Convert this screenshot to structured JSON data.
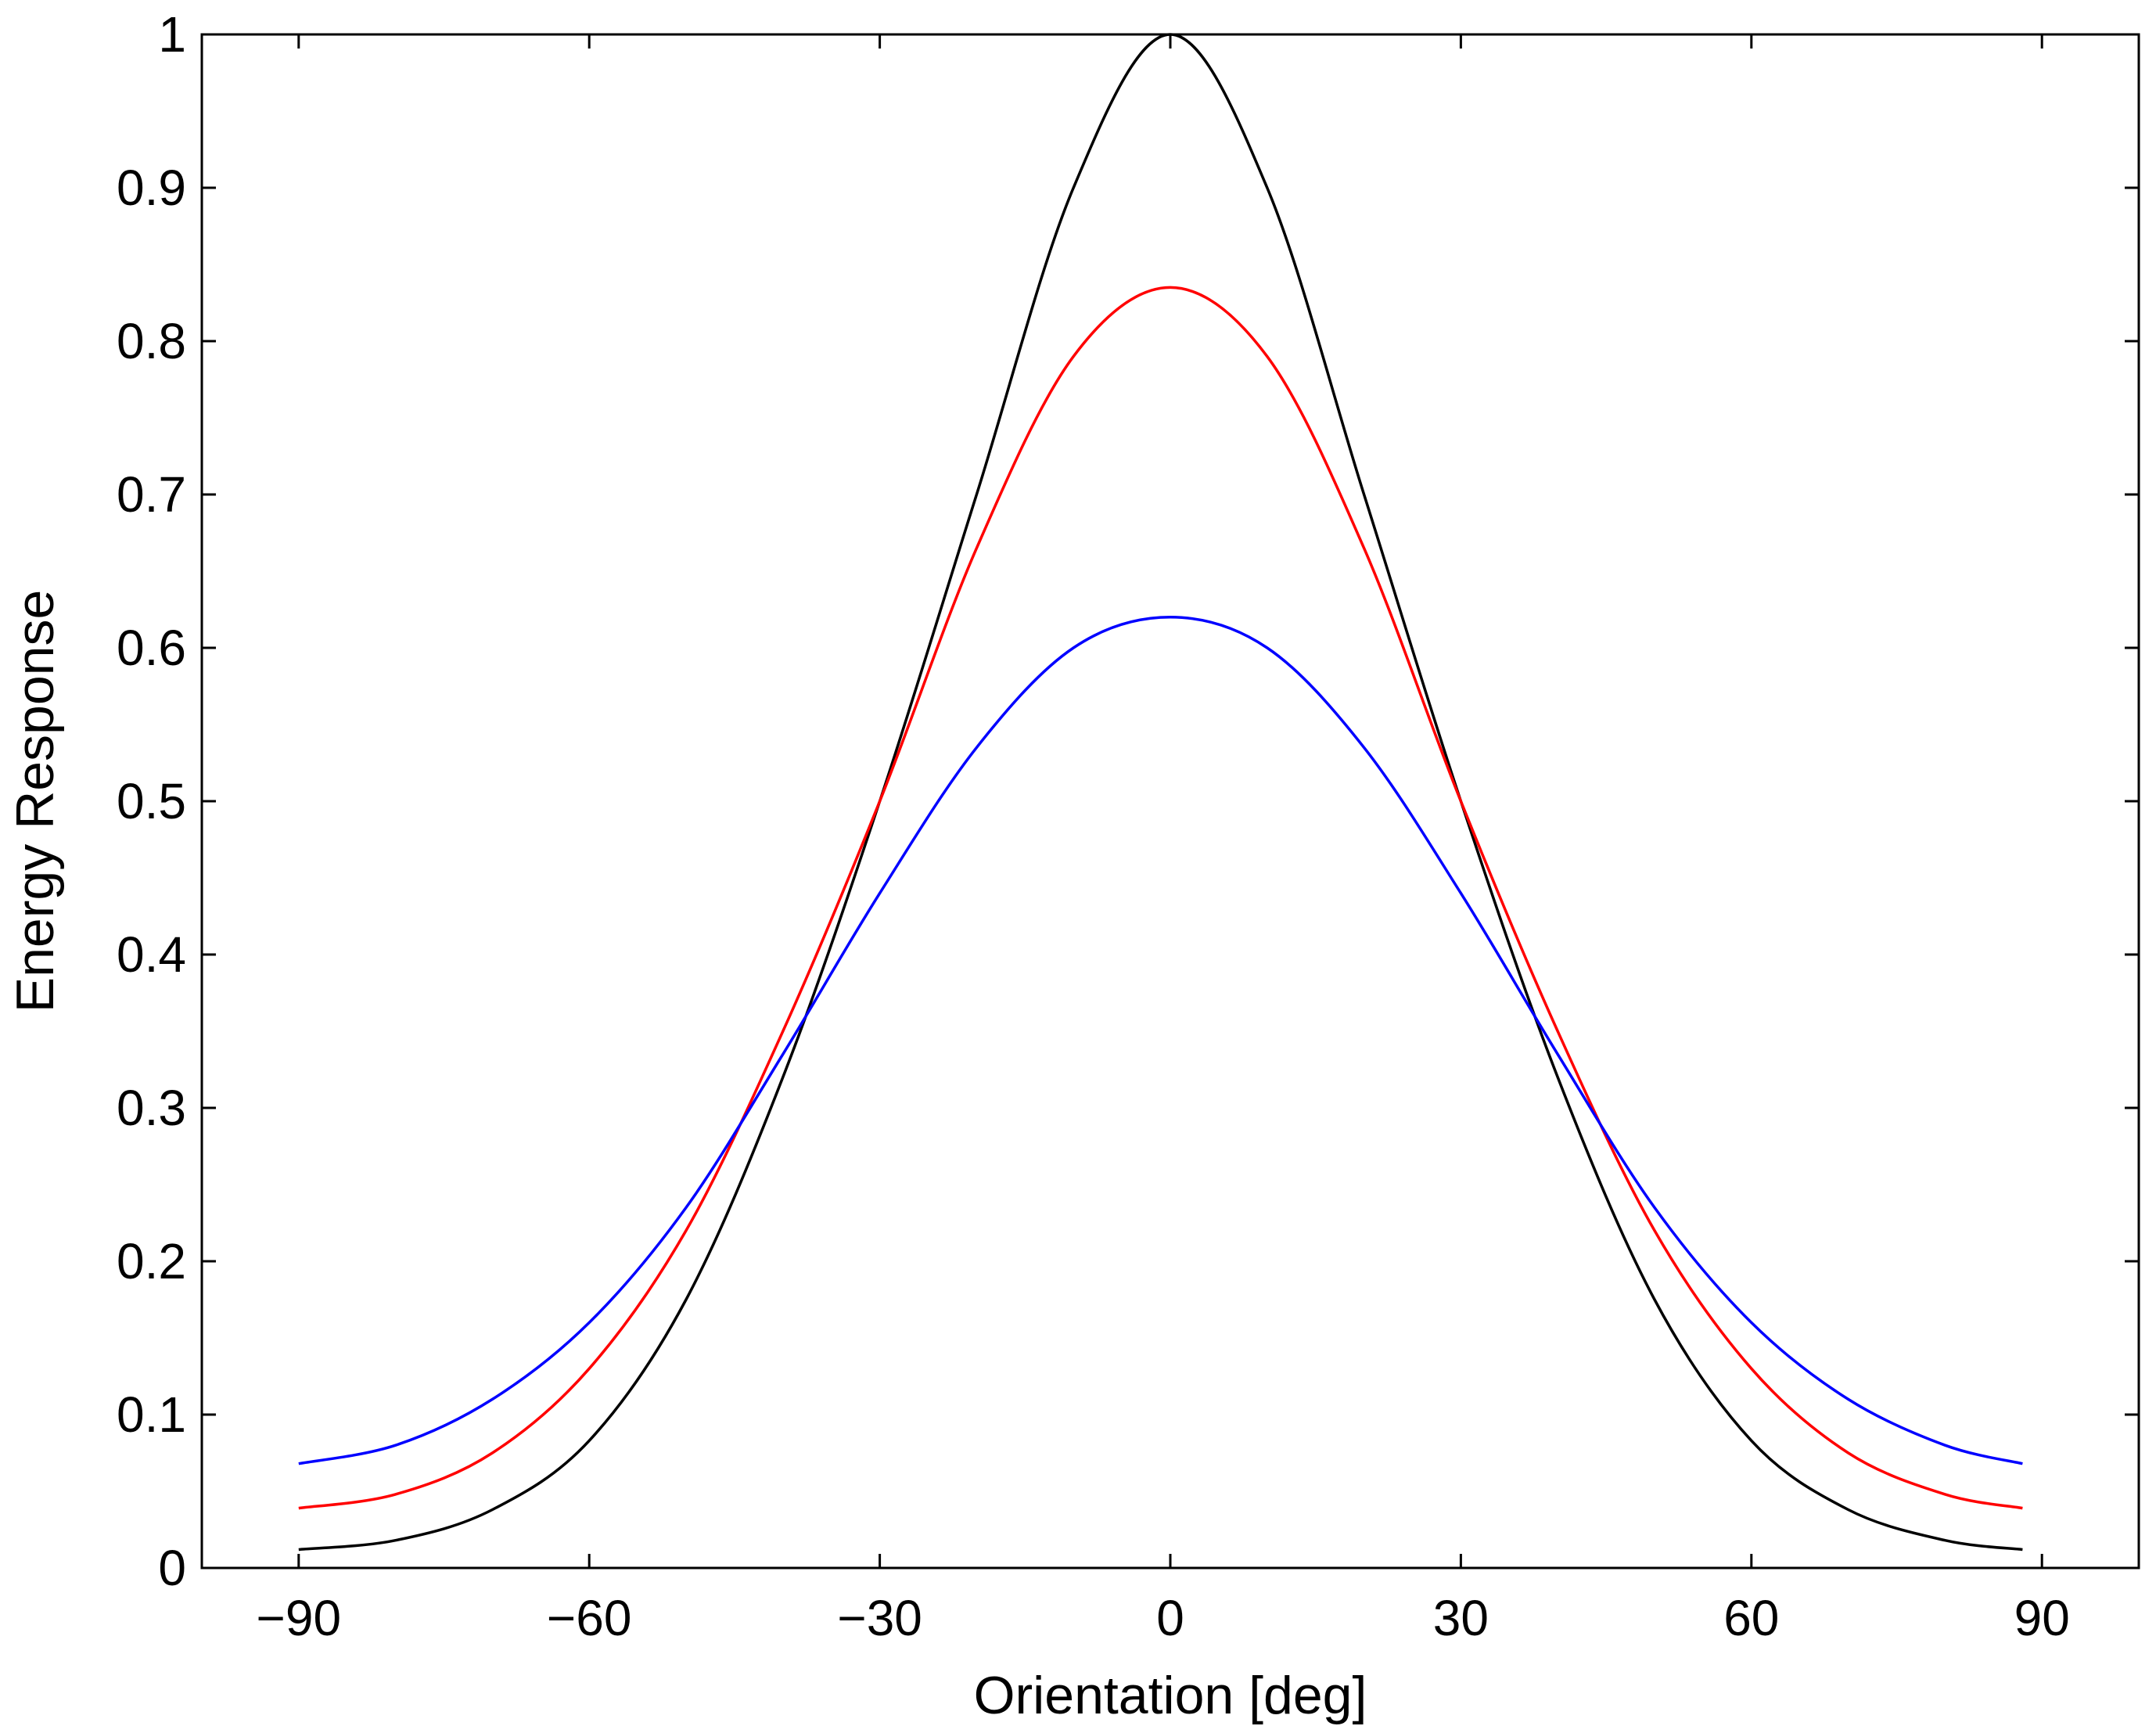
{
  "chart_data": {
    "type": "line",
    "title": "",
    "xlabel": "Orientation [deg]",
    "ylabel": "Energy Response",
    "xlim": [
      -100,
      100
    ],
    "ylim": [
      0,
      1
    ],
    "xticks": [
      -90,
      -60,
      -30,
      0,
      30,
      60,
      90
    ],
    "xtick_labels": [
      "−90",
      "−60",
      "−30",
      "0",
      "30",
      "60",
      "90"
    ],
    "yticks": [
      0,
      0.1,
      0.2,
      0.3,
      0.4,
      0.5,
      0.6,
      0.7,
      0.8,
      0.9,
      1
    ],
    "ytick_labels": [
      "0",
      "0.1",
      "0.2",
      "0.3",
      "0.4",
      "0.5",
      "0.6",
      "0.7",
      "0.8",
      "0.9",
      "1"
    ],
    "grid": false,
    "legend": "none",
    "x": [
      -90,
      -80,
      -70,
      -60,
      -50,
      -40,
      -30,
      -20,
      -10,
      0,
      10,
      20,
      30,
      40,
      50,
      60,
      70,
      80,
      88
    ],
    "series": [
      {
        "name": "black",
        "color": "#000000",
        "values": [
          0.012,
          0.018,
          0.038,
          0.083,
          0.175,
          0.32,
          0.5,
          0.7,
          0.9,
          1.0,
          0.9,
          0.7,
          0.5,
          0.32,
          0.175,
          0.083,
          0.038,
          0.018,
          0.012
        ]
      },
      {
        "name": "red",
        "color": "#ff0000",
        "values": [
          0.039,
          0.048,
          0.075,
          0.13,
          0.22,
          0.35,
          0.5,
          0.665,
          0.79,
          0.835,
          0.79,
          0.665,
          0.5,
          0.35,
          0.22,
          0.13,
          0.075,
          0.048,
          0.039
        ]
      },
      {
        "name": "blue",
        "color": "#0000ff",
        "values": [
          0.068,
          0.08,
          0.11,
          0.16,
          0.235,
          0.335,
          0.44,
          0.535,
          0.6,
          0.62,
          0.6,
          0.535,
          0.44,
          0.335,
          0.235,
          0.16,
          0.11,
          0.08,
          0.068
        ]
      }
    ]
  }
}
